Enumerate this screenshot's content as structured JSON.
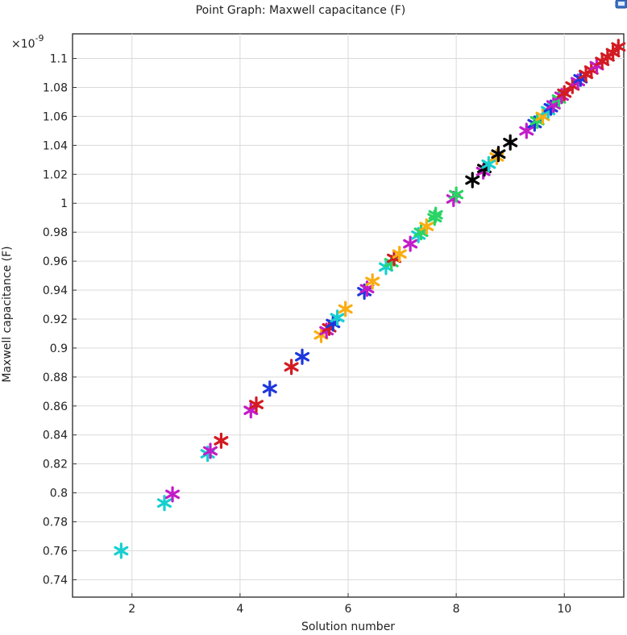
{
  "chart_data": {
    "type": "scatter",
    "title": "Point Graph: Maxwell capacitance (F)",
    "xlabel": "Solution number",
    "ylabel": "Maxwell capacitance (F)",
    "y_multiplier_label": "×10",
    "y_exponent_label": "-9",
    "xlim": [
      0.9,
      11.1
    ],
    "ylim": [
      0.728,
      1.117
    ],
    "x_ticks": [
      2,
      4,
      6,
      8,
      10
    ],
    "y_ticks": [
      0.74,
      0.76,
      0.78,
      0.8,
      0.82,
      0.84,
      0.86,
      0.88,
      0.9,
      0.92,
      0.94,
      0.96,
      0.98,
      1,
      1.02,
      1.04,
      1.06,
      1.08,
      1.1
    ],
    "grid": true,
    "marker": "asterisk",
    "colors": [
      "#17cfd0",
      "#c21cc8",
      "#d21b22",
      "#1e37dc",
      "#f9ad12",
      "#2ad465",
      "#000000"
    ],
    "points": [
      {
        "x": 1.8,
        "y": 0.76,
        "color": "#17cfd0"
      },
      {
        "x": 2.6,
        "y": 0.793,
        "color": "#17cfd0"
      },
      {
        "x": 2.75,
        "y": 0.799,
        "color": "#c21cc8"
      },
      {
        "x": 3.4,
        "y": 0.827,
        "color": "#17cfd0"
      },
      {
        "x": 3.45,
        "y": 0.829,
        "color": "#c21cc8"
      },
      {
        "x": 3.65,
        "y": 0.836,
        "color": "#d21b22"
      },
      {
        "x": 4.2,
        "y": 0.857,
        "color": "#c21cc8"
      },
      {
        "x": 4.3,
        "y": 0.861,
        "color": "#d21b22"
      },
      {
        "x": 4.55,
        "y": 0.872,
        "color": "#1e37dc"
      },
      {
        "x": 4.95,
        "y": 0.887,
        "color": "#d21b22"
      },
      {
        "x": 5.15,
        "y": 0.894,
        "color": "#1e37dc"
      },
      {
        "x": 5.5,
        "y": 0.909,
        "color": "#f9ad12"
      },
      {
        "x": 5.6,
        "y": 0.912,
        "color": "#c21cc8"
      },
      {
        "x": 5.65,
        "y": 0.914,
        "color": "#d21b22"
      },
      {
        "x": 5.72,
        "y": 0.917,
        "color": "#1e37dc"
      },
      {
        "x": 5.8,
        "y": 0.921,
        "color": "#17cfd0"
      },
      {
        "x": 5.95,
        "y": 0.927,
        "color": "#f9ad12"
      },
      {
        "x": 6.3,
        "y": 0.939,
        "color": "#1e37dc"
      },
      {
        "x": 6.35,
        "y": 0.941,
        "color": "#c21cc8"
      },
      {
        "x": 6.45,
        "y": 0.946,
        "color": "#f9ad12"
      },
      {
        "x": 6.7,
        "y": 0.956,
        "color": "#17cfd0"
      },
      {
        "x": 6.8,
        "y": 0.959,
        "color": "#2ad465"
      },
      {
        "x": 6.85,
        "y": 0.962,
        "color": "#d21b22"
      },
      {
        "x": 6.95,
        "y": 0.965,
        "color": "#f9ad12"
      },
      {
        "x": 7.15,
        "y": 0.972,
        "color": "#c21cc8"
      },
      {
        "x": 7.3,
        "y": 0.978,
        "color": "#17cfd0"
      },
      {
        "x": 7.35,
        "y": 0.98,
        "color": "#2ad465"
      },
      {
        "x": 7.45,
        "y": 0.984,
        "color": "#f9ad12"
      },
      {
        "x": 7.6,
        "y": 0.99,
        "color": "#2ad465"
      },
      {
        "x": 7.62,
        "y": 0.992,
        "color": "#2ad465"
      },
      {
        "x": 7.95,
        "y": 1.003,
        "color": "#c21cc8"
      },
      {
        "x": 8.0,
        "y": 1.006,
        "color": "#2ad465"
      },
      {
        "x": 8.3,
        "y": 1.016,
        "color": "#000000"
      },
      {
        "x": 8.5,
        "y": 1.022,
        "color": "#c21cc8"
      },
      {
        "x": 8.52,
        "y": 1.024,
        "color": "#000000"
      },
      {
        "x": 8.6,
        "y": 1.027,
        "color": "#17cfd0"
      },
      {
        "x": 8.75,
        "y": 1.032,
        "color": "#f9ad12"
      },
      {
        "x": 8.78,
        "y": 1.034,
        "color": "#000000"
      },
      {
        "x": 9.0,
        "y": 1.042,
        "color": "#000000"
      },
      {
        "x": 9.3,
        "y": 1.05,
        "color": "#c21cc8"
      },
      {
        "x": 9.45,
        "y": 1.055,
        "color": "#1e37dc"
      },
      {
        "x": 9.5,
        "y": 1.057,
        "color": "#2ad465"
      },
      {
        "x": 9.6,
        "y": 1.06,
        "color": "#f9ad12"
      },
      {
        "x": 9.7,
        "y": 1.064,
        "color": "#17cfd0"
      },
      {
        "x": 9.75,
        "y": 1.066,
        "color": "#1e37dc"
      },
      {
        "x": 9.8,
        "y": 1.068,
        "color": "#c21cc8"
      },
      {
        "x": 9.9,
        "y": 1.072,
        "color": "#2ad465"
      },
      {
        "x": 9.95,
        "y": 1.074,
        "color": "#c21cc8"
      },
      {
        "x": 10.0,
        "y": 1.076,
        "color": "#d21b22"
      },
      {
        "x": 10.15,
        "y": 1.081,
        "color": "#d21b22"
      },
      {
        "x": 10.25,
        "y": 1.084,
        "color": "#c21cc8"
      },
      {
        "x": 10.3,
        "y": 1.086,
        "color": "#1e37dc"
      },
      {
        "x": 10.4,
        "y": 1.089,
        "color": "#d21b22"
      },
      {
        "x": 10.5,
        "y": 1.092,
        "color": "#d21b22"
      },
      {
        "x": 10.6,
        "y": 1.095,
        "color": "#c21cc8"
      },
      {
        "x": 10.7,
        "y": 1.098,
        "color": "#d21b22"
      },
      {
        "x": 10.8,
        "y": 1.101,
        "color": "#d21b22"
      },
      {
        "x": 10.9,
        "y": 1.104,
        "color": "#d21b22"
      },
      {
        "x": 11.0,
        "y": 1.108,
        "color": "#d21b22"
      }
    ]
  }
}
